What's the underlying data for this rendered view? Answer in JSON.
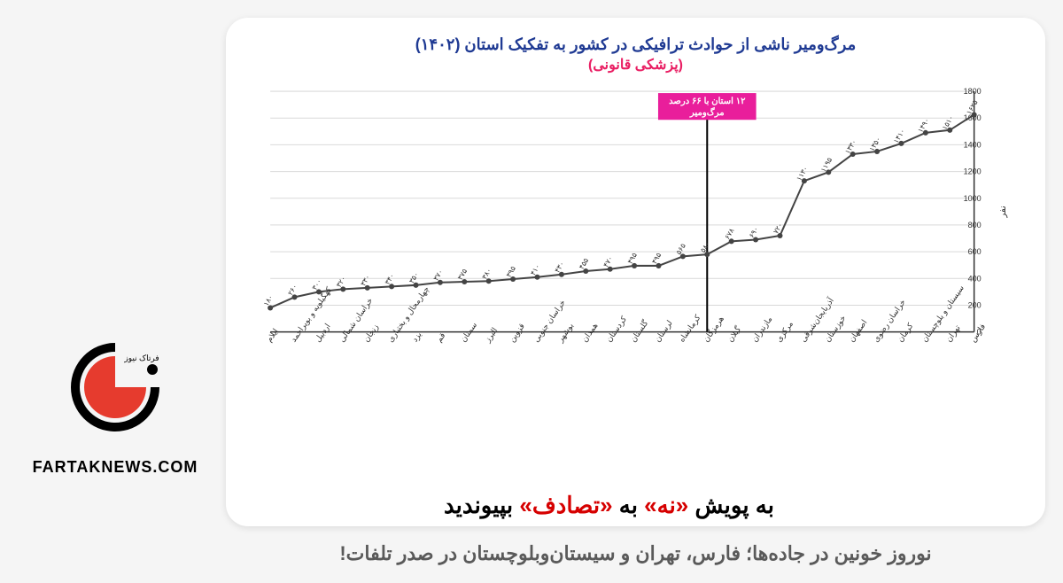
{
  "brand": {
    "site": "FARTAKNEWS.COM",
    "logo_outer_color": "#000000",
    "logo_inner_color": "#e63b2e",
    "logo_text": "فرتاک نیوز"
  },
  "chart": {
    "type": "line",
    "title": "مرگ‌ومیر ناشی از حوادث ترافیکی در کشور به تفکیک استان (۱۴۰۲)",
    "title_color": "#1f3a93",
    "title_fontsize": 18,
    "subtitle": "(پزشکی قانونی)",
    "subtitle_color": "#e91e63",
    "subtitle_fontsize": 16,
    "y_axis_label": "نفر",
    "y_axis_label_fontsize": 10,
    "ylim": [
      0,
      1800
    ],
    "ytick_step": 200,
    "yticks": [
      0,
      200,
      400,
      600,
      800,
      1000,
      1200,
      1400,
      1600,
      1800
    ],
    "line_color": "#444444",
    "marker_color": "#444444",
    "marker_radius": 3,
    "line_width": 2,
    "grid_color": "#d9d9d9",
    "axis_color": "#333333",
    "background": "#ffffff",
    "value_label_color": "#333333",
    "value_label_fontsize": 8,
    "xlabel_fontsize": 9,
    "xlabel_rotation": -55,
    "annotation": {
      "index": 11,
      "text_line1": "۱۲ استان با ۶۶ درصد",
      "text_line2": "مرگ‌ومیر",
      "bg": "#e91e9b",
      "color": "#ffffff",
      "line_color": "#000000",
      "fontsize": 10
    },
    "provinces": [
      "فارس",
      "تهران",
      "سیستان و بلوچستان",
      "کرمان",
      "خراسان رضوی",
      "اصفهان",
      "خوزستان",
      "آذربایجان‌شرقی",
      "مرکزی",
      "مازندران",
      "گیلان",
      "هرمزگان",
      "کرمانشاه",
      "لرستان",
      "گلستان",
      "کردستان",
      "همدان",
      "بوشهر",
      "خراسان جنوبی",
      "قزوین",
      "البرز",
      "سمنان",
      "قم",
      "یزد",
      "چهارمحال و بختیاری",
      "زنجان",
      "خراسان شمالی",
      "اردبیل",
      "کهگیلویه و بویراحمد",
      "ایلام"
    ],
    "values": [
      1625,
      1510,
      1490,
      1410,
      1350,
      1330,
      1195,
      1130,
      720,
      690,
      678,
      580,
      565,
      495,
      495,
      470,
      455,
      430,
      410,
      395,
      380,
      375,
      370,
      350,
      340,
      330,
      320,
      300,
      260,
      180
    ],
    "value_labels": [
      "۱۶۲۵",
      "۱۵۱۰",
      "۱۴۹۰",
      "۱۴۱۰",
      "۱۳۵۰",
      "۱۳۳۰",
      "۱۱۹۵",
      "۱۱۳۰",
      "۷۲۰",
      "۶۹۰",
      "۶۷۸",
      "۵۸۰",
      "۵۶۵",
      "۴۹۵",
      "۴۹۵",
      "۴۷۰",
      "۴۵۵",
      "۴۳۰",
      "۴۱۰",
      "۳۹۵",
      "۳۸۰",
      "۳۷۵",
      "۳۷۰",
      "۳۵۰",
      "۳۴۰",
      "۳۳۰",
      "۳۲۰",
      "۳۰۰",
      "۲۶۰",
      "۱۸۰"
    ]
  },
  "campaign": {
    "prefix": "به پویش ",
    "no": "«نه»",
    "mid": " به ",
    "accident": "«تصادف»",
    "suffix": " بپیوندید",
    "text_color": "#000000",
    "highlight_color": "#d60000",
    "fontsize": 26
  },
  "headline": {
    "text": "نوروز خونین در جاده‌ها؛ فارس، تهران و سیستان‌وبلوچستان در صدر تلفات!",
    "color": "#5a5a5a",
    "fontsize": 22
  }
}
